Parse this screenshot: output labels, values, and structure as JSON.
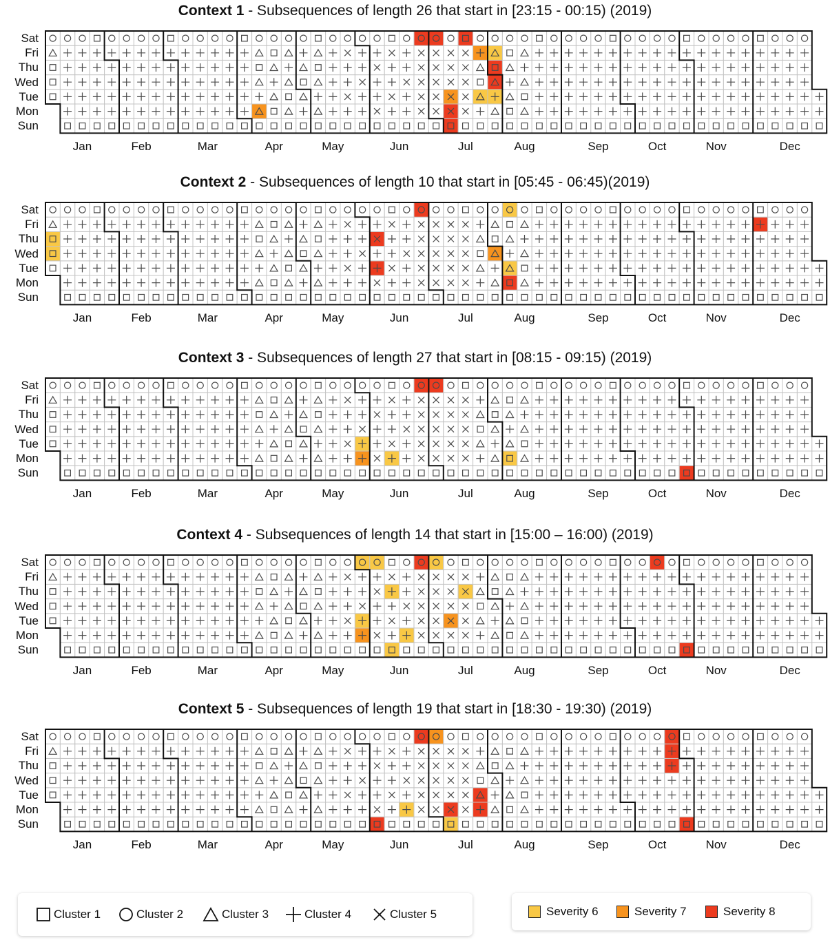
{
  "chart_data": [
    {
      "type": "heatmap",
      "context_label": "Context 1",
      "subtitle": "- Subsequences of length 26 that start in [23:15 - 00:15) (2019)",
      "highlights": [
        {
          "week": 25,
          "day": "Sat",
          "severity": 8
        },
        {
          "week": 26,
          "day": "Sat",
          "severity": 8
        },
        {
          "week": 28,
          "day": "Sat",
          "severity": 8
        },
        {
          "week": 29,
          "day": "Fri",
          "severity": 7
        },
        {
          "week": 30,
          "day": "Fri",
          "severity": 6
        },
        {
          "week": 30,
          "day": "Thu",
          "severity": 8
        },
        {
          "week": 30,
          "day": "Wed",
          "severity": 8
        },
        {
          "week": 29,
          "day": "Tue",
          "severity": 6
        },
        {
          "week": 30,
          "day": "Tue",
          "severity": 6
        },
        {
          "week": 27,
          "day": "Tue",
          "severity": 7
        },
        {
          "week": 27,
          "day": "Mon",
          "severity": 8
        },
        {
          "week": 27,
          "day": "Sun",
          "severity": 8
        },
        {
          "week": 14,
          "day": "Mon",
          "severity": 7
        }
      ]
    },
    {
      "type": "heatmap",
      "context_label": "Context 2",
      "subtitle": "- Subsequences of length 10 that start in [05:45 - 06:45)(2019)",
      "highlights": [
        {
          "week": 25,
          "day": "Sat",
          "severity": 8
        },
        {
          "week": 31,
          "day": "Sat",
          "severity": 6
        },
        {
          "week": 48,
          "day": "Fri",
          "severity": 8
        },
        {
          "week": 0,
          "day": "Thu",
          "severity": 6
        },
        {
          "week": 0,
          "day": "Wed",
          "severity": 6
        },
        {
          "week": 22,
          "day": "Thu",
          "severity": 8
        },
        {
          "week": 30,
          "day": "Wed",
          "severity": 7
        },
        {
          "week": 22,
          "day": "Tue",
          "severity": 8
        },
        {
          "week": 31,
          "day": "Tue",
          "severity": 6
        },
        {
          "week": 31,
          "day": "Mon",
          "severity": 8
        }
      ]
    },
    {
      "type": "heatmap",
      "context_label": "Context 3",
      "subtitle": "- Subsequences of length 27 that start in [08:15 - 09:15) (2019)",
      "highlights": [
        {
          "week": 25,
          "day": "Sat",
          "severity": 8
        },
        {
          "week": 26,
          "day": "Sat",
          "severity": 8
        },
        {
          "week": 21,
          "day": "Tue",
          "severity": 6
        },
        {
          "week": 21,
          "day": "Mon",
          "severity": 7
        },
        {
          "week": 23,
          "day": "Mon",
          "severity": 6
        },
        {
          "week": 31,
          "day": "Mon",
          "severity": 6
        },
        {
          "week": 43,
          "day": "Sun",
          "severity": 8
        }
      ]
    },
    {
      "type": "heatmap",
      "context_label": "Context 4",
      "subtitle": "- Subsequences of length 14 that start in [15:00 – 16:00) (2019)",
      "highlights": [
        {
          "week": 21,
          "day": "Sat",
          "severity": 6
        },
        {
          "week": 22,
          "day": "Sat",
          "severity": 6
        },
        {
          "week": 25,
          "day": "Sat",
          "severity": 8
        },
        {
          "week": 26,
          "day": "Sat",
          "severity": 6
        },
        {
          "week": 41,
          "day": "Sat",
          "severity": 8
        },
        {
          "week": 23,
          "day": "Thu",
          "severity": 6
        },
        {
          "week": 28,
          "day": "Thu",
          "severity": 6
        },
        {
          "week": 21,
          "day": "Tue",
          "severity": 6
        },
        {
          "week": 27,
          "day": "Tue",
          "severity": 7
        },
        {
          "week": 21,
          "day": "Mon",
          "severity": 7
        },
        {
          "week": 24,
          "day": "Mon",
          "severity": 6
        },
        {
          "week": 23,
          "day": "Sun",
          "severity": 6
        },
        {
          "week": 43,
          "day": "Sun",
          "severity": 8
        }
      ]
    },
    {
      "type": "heatmap",
      "context_label": "Context 5",
      "subtitle": "- Subsequences of length 19 that start in [18:30 - 19:30) (2019)",
      "highlights": [
        {
          "week": 25,
          "day": "Sat",
          "severity": 8
        },
        {
          "week": 26,
          "day": "Sat",
          "severity": 7
        },
        {
          "week": 42,
          "day": "Sat",
          "severity": 8
        },
        {
          "week": 42,
          "day": "Fri",
          "severity": 8
        },
        {
          "week": 42,
          "day": "Thu",
          "severity": 8
        },
        {
          "week": 29,
          "day": "Tue",
          "severity": 8
        },
        {
          "week": 29,
          "day": "Mon",
          "severity": 8
        },
        {
          "week": 27,
          "day": "Mon",
          "severity": 8
        },
        {
          "week": 24,
          "day": "Mon",
          "severity": 6
        },
        {
          "week": 22,
          "day": "Sun",
          "severity": 8
        },
        {
          "week": 27,
          "day": "Sun",
          "severity": 6
        },
        {
          "week": 43,
          "day": "Sun",
          "severity": 8
        }
      ]
    }
  ],
  "year": 2019,
  "day_labels": [
    "Sat",
    "Fri",
    "Thu",
    "Wed",
    "Tue",
    "Mon",
    "Sun"
  ],
  "month_labels": [
    "Jan",
    "Feb",
    "Mar",
    "Apr",
    "May",
    "Jun",
    "Jul",
    "Aug",
    "Sep",
    "Oct",
    "Nov",
    "Dec"
  ],
  "cluster_legend": [
    {
      "label": "Cluster 1",
      "icon": "square-icon"
    },
    {
      "label": "Cluster 2",
      "icon": "circle-icon"
    },
    {
      "label": "Cluster 3",
      "icon": "triangle-icon"
    },
    {
      "label": "Cluster 4",
      "icon": "plus-icon"
    },
    {
      "label": "Cluster 5",
      "icon": "cross-icon"
    }
  ],
  "severity_legend": [
    {
      "label": "Severity 6",
      "color": "#f9c845"
    },
    {
      "label": "Severity 7",
      "color": "#f7931e"
    },
    {
      "label": "Severity 8",
      "color": "#ec3b1f"
    }
  ],
  "colors": {
    "grid": "#c4c4c4",
    "border": "#111111",
    "glyph": "#4a4a4a"
  }
}
